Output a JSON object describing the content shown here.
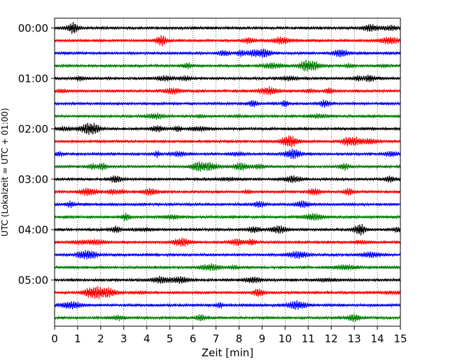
{
  "chart_data": {
    "type": "line",
    "xlabel": "Zeit  [min]",
    "ylabel": "UTC (Lokalzeit = UTC + 01:00)",
    "xlim": [
      0,
      15
    ],
    "x_ticks": [
      "0",
      "1",
      "2",
      "3",
      "4",
      "5",
      "6",
      "7",
      "8",
      "9",
      "10",
      "11",
      "12",
      "13",
      "14",
      "15"
    ],
    "y_ticks": [
      "00:00",
      "01:00",
      "02:00",
      "03:00",
      "04:00",
      "05:00"
    ],
    "traces_per_hour": 4,
    "trace_minutes": 15,
    "trace_colors": [
      "#000000",
      "#ff0000",
      "#0000ff",
      "#007f00"
    ],
    "trace_count": 24,
    "grid": "vertical-dotted",
    "noise_seed": 7
  }
}
